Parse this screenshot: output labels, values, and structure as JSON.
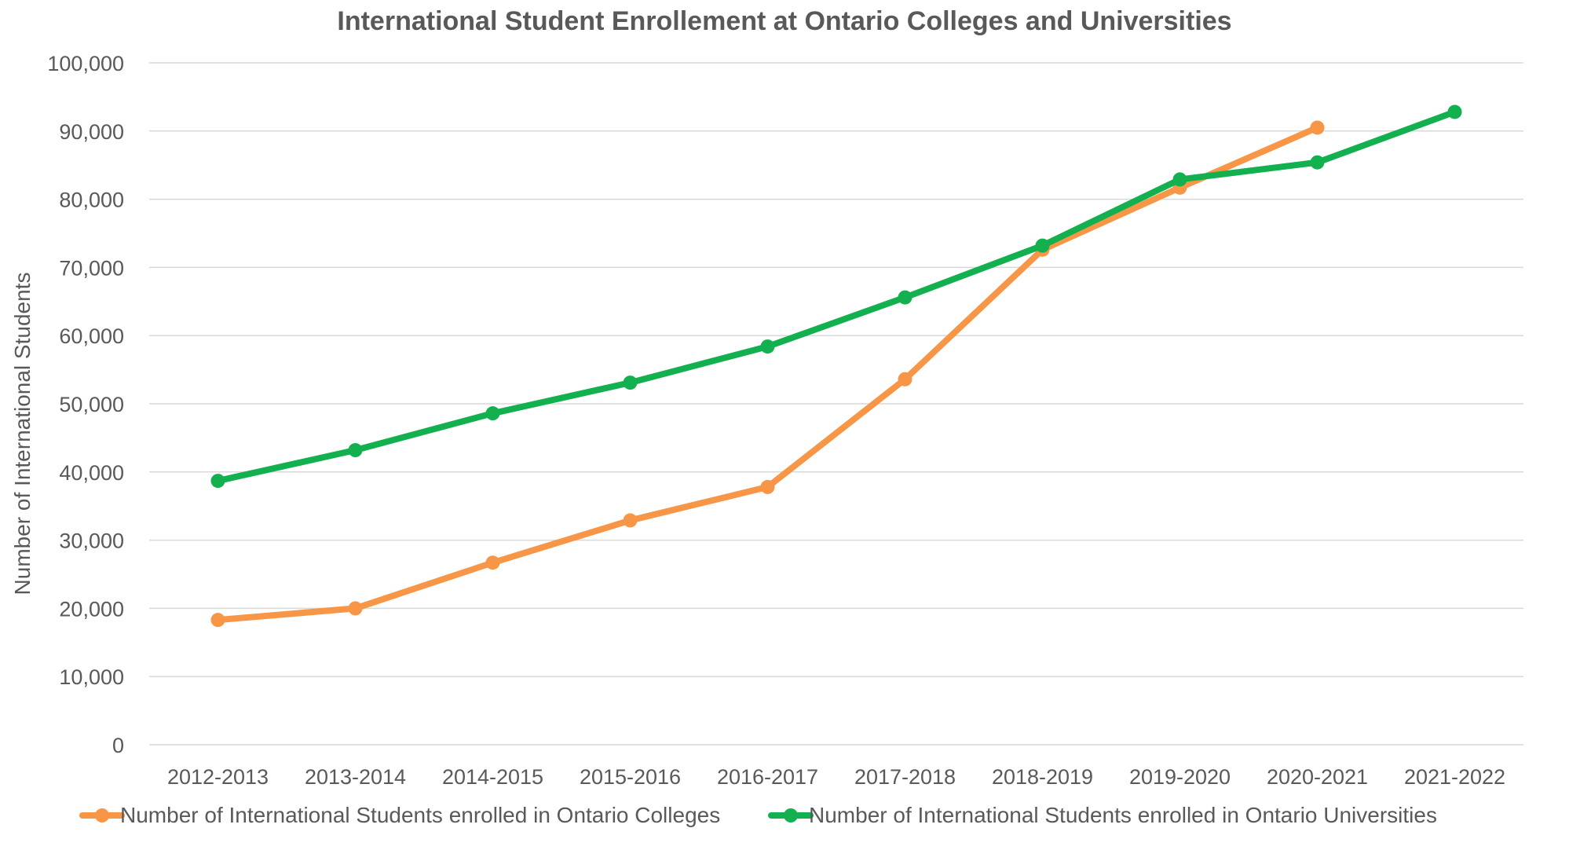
{
  "chart_data": {
    "type": "line",
    "title": "International Student Enrollement at Ontario Colleges and Universities",
    "xlabel": "",
    "ylabel": "Number of International Students",
    "ylim": [
      0,
      100000
    ],
    "ytick_step": 10000,
    "ytick_labels": [
      "0",
      "10,000",
      "20,000",
      "30,000",
      "40,000",
      "50,000",
      "60,000",
      "70,000",
      "80,000",
      "90,000",
      "100,000"
    ],
    "grid": true,
    "legend_position": "bottom",
    "categories": [
      "2012-2013",
      "2013-2014",
      "2014-2015",
      "2015-2016",
      "2016-2017",
      "2017-2018",
      "2018-2019",
      "2019-2020",
      "2020-2021",
      "2021-2022"
    ],
    "series": [
      {
        "name": "Number of International Students enrolled in Ontario Colleges",
        "color": "#F79646",
        "values": [
          18300,
          20000,
          26700,
          32900,
          37800,
          53600,
          72600,
          81700,
          90500,
          null
        ]
      },
      {
        "name": "Number of International Students enrolled in Ontario Universities",
        "color": "#13B050",
        "values": [
          38700,
          43200,
          48600,
          53100,
          58400,
          65600,
          73200,
          82900,
          85400,
          92800
        ]
      }
    ]
  }
}
